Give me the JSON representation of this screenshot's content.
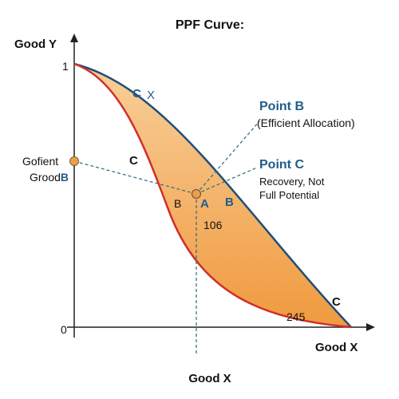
{
  "title": "PPF Curve:",
  "axis": {
    "y_label": "Good Y",
    "x_label_right": "Good X",
    "x_label_bottom": "Good X",
    "y_tick_top": "1",
    "origin": "0"
  },
  "left_point": {
    "line1": "Gofient",
    "line2": "Grood",
    "suffix": "B"
  },
  "labels": {
    "c_x_c": "C",
    "c_x_x": "X",
    "c_inner": "C",
    "c_bottom": "C",
    "b_left": "B",
    "a": "A",
    "b_right": "B",
    "v106": "106",
    "v245": "245"
  },
  "point_b": {
    "title": "Point B",
    "desc": "(Efficient Allocation)"
  },
  "point_c": {
    "title": "Point C",
    "desc_line1": "Recovery, Not",
    "desc_line2": "Full Potential"
  },
  "colors": {
    "fill_top": "#f8cf9a",
    "fill_bottom": "#f09a3e",
    "outer_curve": "#1e4f7a",
    "inner_curve": "#cf2f2a",
    "blue_text": "#1f5d8a",
    "point_fill": "#e9a04f",
    "dash": "#2b6a7a"
  }
}
